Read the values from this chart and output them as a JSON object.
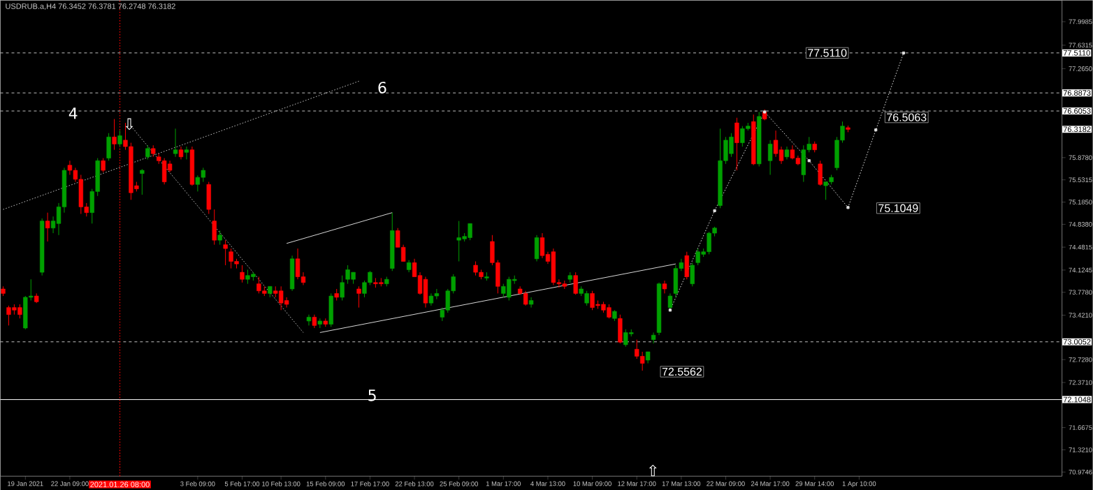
{
  "chart_data": {
    "type": "candlestick",
    "title": "USDRUB.a,H4  76.3452 76.3781 76.2748 76.3182",
    "categories": [
      null,
      null,
      null,
      null,
      "19 Jan 2021",
      null,
      null,
      null,
      null,
      null,
      null,
      null,
      "22 Jan 09:00",
      null,
      null,
      null,
      null,
      null,
      null,
      null,
      null,
      "2021.01.26 08:00",
      null,
      null,
      null,
      null,
      null,
      null,
      null,
      null,
      null,
      null,
      null,
      null,
      null,
      "3 Feb 09:00",
      null,
      null,
      null,
      null,
      null,
      null,
      null,
      "5 Feb 17:00",
      null,
      null,
      null,
      null,
      null,
      null,
      "10 Feb 13:00",
      null,
      null,
      null,
      null,
      null,
      null,
      null,
      "15 Feb 09:00",
      null,
      null,
      null,
      null,
      null,
      null,
      null,
      "17 Feb 17:00",
      null,
      null,
      null,
      null,
      null,
      null,
      null,
      "22 Feb 13:00",
      null,
      null,
      null,
      null,
      null,
      null,
      null,
      "25 Feb 09:00",
      null,
      null,
      null,
      null,
      null,
      null,
      null,
      "1 Mar 17:00",
      null,
      null,
      null,
      null,
      null,
      null,
      null,
      "4 Mar 13:00",
      null,
      null,
      null,
      null,
      null,
      null,
      null,
      "10 Mar 09:00",
      null,
      null,
      null,
      null,
      null,
      null,
      null,
      "12 Mar 17:00",
      null,
      null,
      null,
      null,
      null,
      null,
      null,
      "17 Mar 13:00",
      null,
      null,
      null,
      null,
      null,
      null,
      null,
      "22 Mar 09:00",
      null,
      null,
      null,
      null,
      null,
      null,
      null,
      "24 Mar 17:00",
      null,
      null,
      null,
      null,
      null,
      null,
      null,
      "29 Mar 14:00",
      null,
      null,
      null,
      null,
      null,
      null,
      null,
      "1 Apr 10:00",
      null,
      null,
      null,
      null,
      null,
      null,
      null,
      null,
      null,
      null,
      null,
      null,
      null,
      null,
      null,
      null,
      null,
      null,
      null,
      null,
      null,
      null,
      null,
      null,
      null,
      null,
      null,
      null,
      null,
      null,
      null,
      null,
      null,
      null,
      null,
      null
    ],
    "ohlc": [
      [
        73.83,
        73.87,
        73.72,
        73.76
      ],
      [
        73.54,
        73.57,
        73.26,
        73.43
      ],
      [
        73.54,
        73.59,
        73.43,
        73.5
      ],
      [
        73.54,
        73.59,
        73.37,
        73.43
      ],
      [
        73.22,
        73.72,
        73.2,
        73.7
      ],
      [
        73.7,
        73.98,
        73.65,
        73.72
      ],
      [
        73.72,
        73.76,
        73.61,
        73.63
      ],
      [
        74.09,
        74.93,
        74.04,
        74.89
      ],
      [
        74.89,
        75.02,
        74.57,
        74.78
      ],
      [
        74.78,
        74.96,
        74.7,
        74.89
      ],
      [
        74.85,
        75.17,
        74.67,
        75.11
      ],
      [
        75.11,
        75.72,
        75.02,
        75.68
      ],
      [
        75.76,
        75.83,
        75.61,
        75.68
      ],
      [
        75.68,
        75.72,
        75.5,
        75.54
      ],
      [
        75.54,
        75.61,
        75.0,
        75.11
      ],
      [
        75.11,
        75.17,
        74.96,
        75.02
      ],
      [
        75.02,
        75.39,
        74.85,
        75.35
      ],
      [
        75.35,
        75.87,
        75.28,
        75.83
      ],
      [
        75.83,
        75.87,
        75.65,
        75.68
      ],
      [
        75.87,
        76.26,
        75.83,
        76.2
      ],
      [
        76.2,
        76.48,
        76.0,
        76.09
      ],
      [
        76.09,
        76.3,
        76.05,
        76.22
      ],
      [
        76.15,
        76.42,
        76.0,
        76.05
      ],
      [
        76.05,
        76.11,
        75.22,
        75.33
      ],
      [
        75.44,
        75.5,
        75.35,
        75.39
      ],
      [
        75.63,
        75.7,
        75.3,
        75.68
      ],
      [
        75.89,
        76.07,
        75.85,
        76.02
      ],
      [
        76.02,
        76.07,
        75.89,
        75.94
      ],
      [
        75.89,
        75.94,
        75.78,
        75.83
      ],
      [
        75.83,
        75.87,
        75.46,
        75.5
      ],
      [
        75.78,
        75.83,
        75.65,
        75.68
      ],
      [
        75.94,
        76.33,
        75.89,
        76.0
      ],
      [
        76.0,
        76.05,
        75.85,
        75.89
      ],
      [
        75.96,
        76.05,
        75.85,
        76.0
      ],
      [
        76.0,
        76.05,
        75.44,
        75.46
      ],
      [
        75.46,
        75.6,
        75.35,
        75.57
      ],
      [
        75.57,
        75.72,
        75.5,
        75.68
      ],
      [
        75.46,
        75.5,
        75.0,
        75.07
      ],
      [
        74.89,
        75.07,
        74.52,
        74.59
      ],
      [
        74.59,
        74.74,
        74.52,
        74.67
      ],
      [
        74.52,
        74.59,
        74.2,
        74.46
      ],
      [
        74.41,
        74.46,
        74.15,
        74.26
      ],
      [
        74.26,
        74.3,
        74.15,
        74.22
      ],
      [
        74.09,
        74.2,
        73.93,
        73.98
      ],
      [
        73.98,
        74.13,
        73.91,
        74.04
      ],
      [
        74.02,
        74.09,
        73.96,
        74.06
      ],
      [
        73.91,
        74.02,
        73.76,
        73.8
      ],
      [
        73.8,
        73.87,
        73.72,
        73.76
      ],
      [
        73.76,
        73.87,
        73.7,
        73.87
      ],
      [
        73.8,
        73.87,
        73.7,
        73.76
      ],
      [
        73.8,
        73.87,
        73.5,
        73.61
      ],
      [
        73.65,
        73.7,
        73.54,
        73.59
      ],
      [
        73.83,
        74.35,
        73.8,
        74.3
      ],
      [
        74.3,
        74.46,
        73.98,
        74.02
      ],
      [
        74.02,
        74.09,
        73.89,
        73.93
      ],
      [
        73.33,
        73.43,
        73.26,
        73.39
      ],
      [
        73.39,
        73.43,
        73.22,
        73.26
      ],
      [
        73.28,
        73.37,
        73.22,
        73.33
      ],
      [
        73.33,
        73.37,
        73.24,
        73.28
      ],
      [
        73.28,
        73.76,
        73.24,
        73.72
      ],
      [
        73.76,
        73.83,
        73.65,
        73.7
      ],
      [
        73.7,
        74.04,
        73.65,
        73.93
      ],
      [
        73.98,
        74.2,
        73.91,
        74.13
      ],
      [
        73.98,
        74.09,
        73.91,
        74.09
      ],
      [
        73.83,
        73.87,
        73.54,
        73.76
      ],
      [
        73.76,
        73.96,
        73.7,
        73.93
      ],
      [
        73.93,
        74.11,
        73.89,
        74.09
      ],
      [
        73.93,
        74.0,
        73.85,
        73.91
      ],
      [
        73.93,
        74.0,
        73.87,
        73.91
      ],
      [
        73.91,
        74.02,
        73.87,
        73.98
      ],
      [
        74.15,
        75.02,
        74.11,
        74.74
      ],
      [
        74.74,
        74.78,
        74.48,
        74.48
      ],
      [
        74.48,
        74.52,
        74.26,
        74.26
      ],
      [
        74.13,
        74.28,
        74.09,
        74.24
      ],
      [
        74.24,
        74.3,
        74.02,
        74.02
      ],
      [
        74.04,
        74.09,
        73.74,
        73.76
      ],
      [
        73.98,
        74.02,
        73.54,
        73.61
      ],
      [
        73.61,
        73.76,
        73.57,
        73.72
      ],
      [
        73.72,
        73.83,
        73.67,
        73.76
      ],
      [
        73.39,
        73.54,
        73.33,
        73.5
      ],
      [
        73.5,
        73.83,
        73.46,
        73.8
      ],
      [
        73.8,
        74.06,
        73.76,
        74.02
      ],
      [
        74.59,
        74.89,
        74.26,
        74.63
      ],
      [
        74.61,
        74.7,
        74.57,
        74.65
      ],
      [
        74.63,
        74.85,
        74.59,
        74.85
      ],
      [
        74.2,
        74.26,
        74.04,
        74.09
      ],
      [
        74.09,
        74.13,
        73.98,
        74.02
      ],
      [
        74.0,
        74.09,
        73.96,
        74.02
      ],
      [
        74.57,
        74.67,
        74.2,
        74.24
      ],
      [
        74.24,
        74.28,
        73.76,
        73.87
      ],
      [
        73.76,
        73.91,
        73.7,
        73.87
      ],
      [
        73.7,
        74.02,
        73.65,
        73.98
      ],
      [
        73.96,
        74.04,
        73.91,
        73.98
      ],
      [
        73.83,
        73.87,
        73.74,
        73.76
      ],
      [
        73.76,
        73.8,
        73.57,
        73.59
      ],
      [
        73.59,
        73.7,
        73.54,
        73.65
      ],
      [
        74.3,
        74.67,
        74.26,
        74.63
      ],
      [
        74.63,
        74.7,
        74.31,
        74.35
      ],
      [
        74.37,
        74.41,
        74.22,
        74.26
      ],
      [
        74.41,
        74.46,
        73.89,
        73.93
      ],
      [
        73.93,
        73.98,
        73.85,
        73.91
      ],
      [
        73.91,
        73.96,
        73.83,
        73.87
      ],
      [
        73.98,
        74.09,
        73.93,
        74.04
      ],
      [
        74.04,
        74.09,
        73.74,
        73.76
      ],
      [
        73.76,
        73.87,
        73.72,
        73.83
      ],
      [
        73.61,
        73.8,
        73.57,
        73.76
      ],
      [
        73.76,
        73.8,
        73.5,
        73.54
      ],
      [
        73.59,
        73.65,
        73.52,
        73.57
      ],
      [
        73.59,
        73.63,
        73.46,
        73.5
      ],
      [
        73.54,
        73.59,
        73.37,
        73.39
      ],
      [
        73.37,
        73.5,
        73.33,
        73.48
      ],
      [
        73.37,
        73.43,
        72.98,
        73.0
      ],
      [
        72.96,
        73.2,
        72.93,
        73.15
      ],
      [
        73.13,
        73.2,
        73.09,
        73.15
      ],
      [
        72.89,
        73.04,
        72.74,
        72.78
      ],
      [
        72.78,
        72.85,
        72.5562,
        72.67
      ],
      [
        72.72,
        72.85,
        72.67,
        72.85
      ],
      [
        73.04,
        73.15,
        72.98,
        73.11
      ],
      [
        73.15,
        73.93,
        73.11,
        73.91
      ],
      [
        73.91,
        73.96,
        73.76,
        73.83
      ],
      [
        73.54,
        73.76,
        73.48,
        73.72
      ],
      [
        73.76,
        74.2,
        73.7,
        74.15
      ],
      [
        74.15,
        74.3,
        74.11,
        74.24
      ],
      [
        74.35,
        74.41,
        73.98,
        74.02
      ],
      [
        73.91,
        74.24,
        73.87,
        74.2
      ],
      [
        74.24,
        74.46,
        74.2,
        74.41
      ],
      [
        74.37,
        74.46,
        74.33,
        74.41
      ],
      [
        74.41,
        74.72,
        74.37,
        74.7
      ],
      [
        74.7,
        74.8,
        74.65,
        74.78
      ],
      [
        75.13,
        76.33,
        75.09,
        75.83
      ],
      [
        75.83,
        76.2,
        75.78,
        76.15
      ],
      [
        75.94,
        76.26,
        75.89,
        76.2
      ],
      [
        76.42,
        76.5,
        75.68,
        76.11
      ],
      [
        76.11,
        76.37,
        76.05,
        76.33
      ],
      [
        76.33,
        76.42,
        76.3,
        76.37
      ],
      [
        76.44,
        76.55,
        75.76,
        75.78
      ],
      [
        75.78,
        76.59,
        75.74,
        76.52
      ],
      [
        76.59,
        76.63,
        76.46,
        76.48
      ],
      [
        75.83,
        76.15,
        75.61,
        76.09
      ],
      [
        76.15,
        76.3,
        75.89,
        75.94
      ],
      [
        76.0,
        76.05,
        75.78,
        75.83
      ],
      [
        75.89,
        76.05,
        75.85,
        76.0
      ],
      [
        76.0,
        76.07,
        75.85,
        75.87
      ],
      [
        75.87,
        75.91,
        75.76,
        75.78
      ],
      [
        75.61,
        76.07,
        75.5,
        76.0
      ],
      [
        76.0,
        76.2,
        75.96,
        76.09
      ],
      [
        76.09,
        76.13,
        75.96,
        76.0
      ],
      [
        75.78,
        75.83,
        75.44,
        75.46
      ],
      [
        75.44,
        75.5,
        75.22,
        75.5
      ],
      [
        75.5,
        75.61,
        75.46,
        75.57
      ],
      [
        75.72,
        76.2,
        75.68,
        76.15
      ],
      [
        76.15,
        76.44,
        76.11,
        76.37
      ],
      [
        76.3452,
        76.3781,
        76.2748,
        76.3182
      ],
      null,
      null,
      null,
      null,
      null,
      null,
      null,
      null,
      null,
      null,
      null,
      null,
      null,
      null,
      null,
      null,
      null,
      null,
      null,
      null,
      null,
      null,
      null,
      null,
      null,
      null,
      null,
      null,
      null,
      null,
      null,
      null,
      null,
      null,
      null,
      null,
      null,
      null
    ],
    "series": [
      {
        "type": "line",
        "color": "#c0c0c0",
        "line_style": "dotted",
        "marker": "none",
        "values": [
          75.07,
          null,
          null,
          null,
          null,
          null,
          null,
          null,
          null,
          null,
          null,
          null,
          null,
          null,
          null,
          null,
          null,
          null,
          null,
          null,
          null,
          null,
          null,
          null,
          null,
          null,
          null,
          null,
          null,
          null,
          null,
          null,
          null,
          null,
          null,
          null,
          null,
          null,
          null,
          null,
          null,
          null,
          null,
          null,
          null,
          null,
          null,
          null,
          null,
          null,
          null,
          null,
          null,
          null,
          null,
          null,
          null,
          null,
          null,
          null,
          null,
          null,
          null,
          null,
          77.07,
          null,
          null,
          null,
          null,
          null,
          null,
          null,
          null,
          null,
          null,
          null,
          null,
          null,
          null,
          null,
          null,
          null,
          null,
          null,
          null,
          null,
          null,
          null,
          null,
          null,
          null,
          null,
          null,
          null,
          null,
          null,
          null,
          null,
          null,
          null,
          null,
          null,
          null,
          null,
          null,
          null,
          null,
          null,
          null,
          null,
          null,
          null,
          null,
          null,
          null,
          null,
          null,
          null,
          null,
          null,
          null,
          null,
          null,
          null,
          null,
          null,
          null,
          null,
          null,
          null,
          null,
          null,
          null,
          null,
          null,
          null,
          null,
          null,
          null,
          null,
          null,
          null,
          null,
          null,
          null,
          null,
          null,
          null,
          null,
          null,
          null,
          null,
          null,
          null,
          null,
          null,
          null,
          null,
          null,
          null,
          null,
          null,
          null,
          null,
          null,
          null,
          null,
          null,
          null,
          null,
          null,
          null,
          null,
          null,
          null,
          null,
          null,
          null,
          null,
          null,
          null,
          null,
          null,
          null,
          null,
          null,
          null,
          null,
          null,
          null,
          null
        ]
      },
      {
        "type": "line",
        "color": "#c0c0c0",
        "line_style": "dotted",
        "marker": "none",
        "values": [
          null,
          null,
          null,
          null,
          null,
          null,
          null,
          null,
          null,
          null,
          null,
          null,
          null,
          null,
          null,
          null,
          null,
          null,
          null,
          null,
          null,
          null,
          null,
          76.37,
          null,
          null,
          null,
          null,
          null,
          null,
          null,
          null,
          null,
          null,
          null,
          null,
          null,
          null,
          null,
          null,
          null,
          null,
          null,
          null,
          null,
          null,
          null,
          null,
          null,
          null,
          null,
          null,
          null,
          null,
          73.15,
          null,
          null,
          null,
          null,
          null,
          null,
          null,
          null,
          null,
          null,
          null,
          null,
          null,
          null,
          null,
          null,
          null,
          null,
          null,
          null,
          null,
          null,
          null,
          null,
          null,
          null,
          null,
          null,
          null,
          null,
          null,
          null,
          null,
          null,
          null,
          null,
          null,
          null,
          null,
          null,
          null,
          null,
          null,
          null,
          null,
          null,
          null,
          null,
          null,
          null,
          null,
          null,
          null,
          null,
          null,
          null,
          null,
          null,
          null,
          null,
          null,
          null,
          null,
          null,
          null,
          null,
          null,
          null,
          null,
          null,
          null,
          null,
          null,
          null,
          null,
          null,
          null,
          null,
          null,
          null,
          null,
          null,
          null,
          null,
          null,
          null,
          null,
          null,
          null,
          null,
          null,
          null,
          null,
          null,
          null,
          null,
          null,
          null,
          null,
          null,
          null,
          null,
          null,
          null,
          null,
          null,
          null,
          null,
          null,
          null,
          null,
          null,
          null,
          null,
          null,
          null,
          null,
          null,
          null,
          null,
          null,
          null,
          null,
          null,
          null,
          null,
          null,
          null,
          null,
          null,
          null,
          null,
          null,
          null,
          null,
          null
        ]
      },
      {
        "type": "line",
        "color": "#d8d8d8",
        "line_style": "solid",
        "marker": "none",
        "values": [
          null,
          null,
          null,
          null,
          null,
          null,
          null,
          null,
          null,
          null,
          null,
          null,
          null,
          null,
          null,
          null,
          null,
          null,
          null,
          null,
          null,
          null,
          null,
          null,
          null,
          null,
          null,
          null,
          null,
          null,
          null,
          null,
          null,
          null,
          null,
          null,
          null,
          null,
          null,
          null,
          null,
          null,
          null,
          null,
          null,
          null,
          null,
          null,
          null,
          null,
          null,
          74.54,
          null,
          null,
          null,
          null,
          null,
          null,
          null,
          null,
          null,
          null,
          null,
          null,
          null,
          null,
          null,
          null,
          null,
          null,
          75.02,
          null,
          null,
          null,
          null,
          null,
          null,
          null,
          null,
          null,
          null,
          null,
          null,
          null,
          null,
          null,
          null,
          null,
          null,
          null,
          null,
          null,
          null,
          null,
          null,
          null,
          null,
          null,
          null,
          null,
          null,
          null,
          null,
          null,
          null,
          null,
          null,
          null,
          null,
          null,
          null,
          null,
          null,
          null,
          null,
          null,
          null,
          null,
          null,
          null,
          null,
          null,
          null,
          null,
          null,
          null,
          null,
          null,
          null,
          null,
          null,
          null,
          null,
          null,
          null,
          null,
          null,
          null,
          null,
          null,
          null,
          null,
          null,
          null,
          null,
          null,
          null,
          null,
          null,
          null,
          null,
          null,
          null,
          null,
          null,
          null,
          null,
          null,
          null,
          null,
          null,
          null,
          null,
          null,
          null,
          null,
          null,
          null,
          null,
          null,
          null,
          null,
          null,
          null,
          null,
          null,
          null,
          null,
          null,
          null,
          null,
          null,
          null,
          null,
          null,
          null,
          null,
          null,
          null,
          null,
          null
        ]
      },
      {
        "type": "line",
        "color": "#d8d8d8",
        "line_style": "solid",
        "marker": "none",
        "values": [
          null,
          null,
          null,
          null,
          null,
          null,
          null,
          null,
          null,
          null,
          null,
          null,
          null,
          null,
          null,
          null,
          null,
          null,
          null,
          null,
          null,
          null,
          null,
          null,
          null,
          null,
          null,
          null,
          null,
          null,
          null,
          null,
          null,
          null,
          null,
          null,
          null,
          null,
          null,
          null,
          null,
          null,
          null,
          null,
          null,
          null,
          null,
          null,
          null,
          null,
          null,
          null,
          null,
          null,
          null,
          null,
          null,
          73.15,
          null,
          null,
          null,
          null,
          null,
          null,
          null,
          null,
          null,
          null,
          null,
          null,
          null,
          null,
          null,
          null,
          null,
          null,
          null,
          null,
          null,
          null,
          null,
          null,
          null,
          null,
          null,
          null,
          null,
          null,
          null,
          null,
          null,
          null,
          null,
          null,
          null,
          null,
          null,
          null,
          null,
          null,
          null,
          null,
          null,
          null,
          null,
          null,
          null,
          null,
          null,
          null,
          null,
          null,
          null,
          null,
          null,
          null,
          null,
          null,
          null,
          null,
          null,
          74.22,
          null,
          null,
          null,
          null,
          null,
          null,
          null,
          null,
          null,
          null,
          null,
          null,
          null,
          null,
          null,
          null,
          null,
          null,
          null,
          null,
          null,
          null,
          null,
          null,
          null,
          null,
          null,
          null,
          null,
          null,
          null,
          null,
          null,
          null,
          null,
          null,
          null,
          null,
          null,
          null,
          null,
          null,
          null,
          null,
          null,
          null,
          null,
          null,
          null,
          null,
          null,
          null,
          null,
          null,
          null,
          null,
          null,
          null,
          null,
          null,
          null,
          null,
          null,
          null,
          null,
          null,
          null,
          null,
          null
        ]
      },
      {
        "type": "line",
        "color": "#e0e0e0",
        "line_style": "dotted",
        "marker": "square",
        "values": [
          null,
          null,
          null,
          null,
          null,
          null,
          null,
          null,
          null,
          null,
          null,
          null,
          null,
          null,
          null,
          null,
          null,
          null,
          null,
          null,
          null,
          null,
          null,
          null,
          null,
          null,
          null,
          null,
          null,
          null,
          null,
          null,
          null,
          null,
          null,
          null,
          null,
          null,
          null,
          null,
          null,
          null,
          null,
          null,
          null,
          null,
          null,
          null,
          null,
          null,
          null,
          null,
          null,
          null,
          null,
          null,
          null,
          null,
          null,
          null,
          null,
          null,
          null,
          null,
          null,
          null,
          null,
          null,
          null,
          null,
          null,
          null,
          null,
          null,
          null,
          null,
          null,
          null,
          null,
          null,
          null,
          null,
          null,
          null,
          null,
          null,
          null,
          null,
          null,
          null,
          null,
          null,
          null,
          null,
          null,
          null,
          null,
          null,
          null,
          null,
          null,
          null,
          null,
          null,
          null,
          null,
          null,
          null,
          null,
          null,
          null,
          null,
          null,
          null,
          null,
          null,
          null,
          null,
          null,
          null,
          73.5,
          null,
          null,
          null,
          null,
          null,
          null,
          null,
          75.05,
          null,
          null,
          null,
          null,
          null,
          null,
          null,
          null,
          76.59,
          null,
          null,
          null,
          null,
          null,
          null,
          null,
          75.83,
          null,
          null,
          null,
          null,
          null,
          null,
          75.1,
          null,
          null,
          null,
          null,
          76.31,
          null,
          null,
          null,
          null,
          77.51,
          null,
          null,
          null,
          null,
          null,
          null,
          null,
          null,
          null,
          null,
          null,
          null,
          null,
          null,
          null,
          null,
          null,
          null,
          null,
          null,
          null,
          null,
          null,
          null,
          null,
          null,
          null,
          null
        ]
      }
    ],
    "ylim": [
      70.91,
      78.33
    ],
    "yticks": [
      77.9985,
      77.6315,
      {
        "value": 77.265,
        "label": "77.2650"
      },
      {
        "value": 75.878,
        "label": "75.8780"
      },
      75.5315,
      {
        "value": 75.185,
        "label": "75.1850"
      },
      {
        "value": 74.838,
        "label": "74.8380"
      },
      74.4815,
      74.1245,
      {
        "value": 73.778,
        "label": "73.7780"
      },
      {
        "value": 73.421,
        "label": "73.4210"
      },
      {
        "value": 72.728,
        "label": "72.7280"
      },
      {
        "value": 72.371,
        "label": "72.3710"
      },
      71.6675,
      {
        "value": 71.321,
        "label": "71.3210"
      },
      70.9746
    ],
    "ref_lines": [
      {
        "axis": "x",
        "value": "2021.01.26 08:00",
        "color": "#ff0000",
        "line_style": "dotted"
      },
      {
        "axis": "y",
        "value": 77.511,
        "label": "77.5110",
        "color": "#c0c0c0",
        "line_style": "dashed"
      },
      {
        "axis": "y",
        "value": 76.8873,
        "label": "76.8873",
        "color": "#c0c0c0",
        "line_style": "dashed"
      },
      {
        "axis": "y",
        "value": 76.6053,
        "label": "76.6053",
        "color": "#c0c0c0",
        "line_style": "dashed"
      },
      {
        "axis": "y",
        "value": 73.0052,
        "label": "73.0052",
        "color": "#c0c0c0",
        "line_style": "dashed"
      },
      {
        "axis": "y",
        "value": 72.1048,
        "label": "72.1048",
        "color": "#ffffff",
        "line_style": "solid"
      }
    ],
    "annotations": [
      "4",
      "6",
      "5",
      "⇩",
      "⇧",
      {
        "text": "77.5110",
        "y": 77.511
      },
      {
        "text": "76.5063",
        "y": 76.5063
      },
      "75.1049",
      "72.5562",
      "76.3182"
    ]
  }
}
